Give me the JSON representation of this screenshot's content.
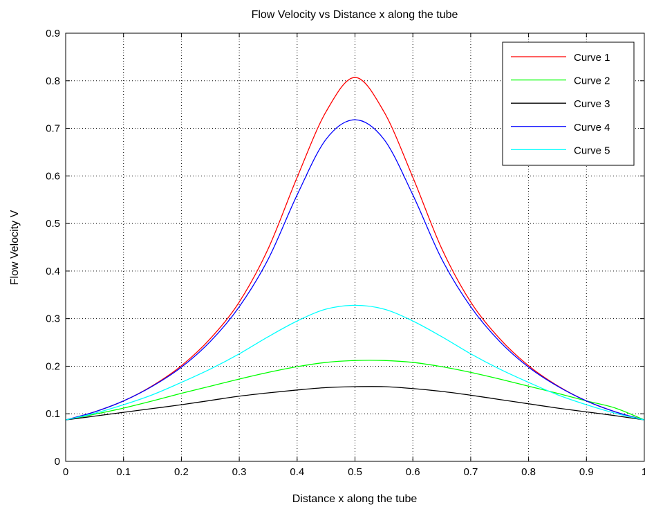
{
  "chart_data": {
    "type": "line",
    "title": "Flow Velocity vs Distance x along the tube",
    "xlabel": "Distance x along the tube",
    "ylabel": "Flow Velocity V",
    "xlim": [
      0,
      1
    ],
    "ylim": [
      0,
      0.9
    ],
    "xticks": [
      "0",
      "0.1",
      "0.2",
      "0.3",
      "0.4",
      "0.5",
      "0.6",
      "0.7",
      "0.8",
      "0.9",
      "1"
    ],
    "yticks": [
      "0",
      "0.1",
      "0.2",
      "0.3",
      "0.4",
      "0.5",
      "0.6",
      "0.7",
      "0.8",
      "0.9"
    ],
    "grid": true,
    "legend_position": "top-right",
    "x": [
      0,
      0.05,
      0.1,
      0.15,
      0.2,
      0.25,
      0.3,
      0.35,
      0.4,
      0.45,
      0.5,
      0.55,
      0.6,
      0.65,
      0.7,
      0.75,
      0.8,
      0.85,
      0.9,
      0.95,
      1.0
    ],
    "series": [
      {
        "name": "Curve 1",
        "color": "#ff0000",
        "values": [
          0.087,
          0.104,
          0.127,
          0.159,
          0.201,
          0.258,
          0.335,
          0.447,
          0.597,
          0.735,
          0.807,
          0.735,
          0.597,
          0.447,
          0.335,
          0.258,
          0.201,
          0.159,
          0.127,
          0.104,
          0.087
        ]
      },
      {
        "name": "Curve 2",
        "color": "#00ff00",
        "values": [
          0.087,
          0.099,
          0.112,
          0.127,
          0.143,
          0.158,
          0.173,
          0.187,
          0.199,
          0.208,
          0.212,
          0.212,
          0.208,
          0.199,
          0.187,
          0.173,
          0.158,
          0.143,
          0.127,
          0.112,
          0.087
        ]
      },
      {
        "name": "Curve 3",
        "color": "#000000",
        "values": [
          0.087,
          0.095,
          0.103,
          0.111,
          0.119,
          0.128,
          0.137,
          0.144,
          0.15,
          0.155,
          0.157,
          0.157,
          0.153,
          0.147,
          0.139,
          0.13,
          0.121,
          0.112,
          0.104,
          0.096,
          0.087
        ]
      },
      {
        "name": "Curve 4",
        "color": "#0000ff",
        "values": [
          0.087,
          0.104,
          0.127,
          0.158,
          0.198,
          0.252,
          0.325,
          0.425,
          0.56,
          0.677,
          0.718,
          0.677,
          0.56,
          0.425,
          0.325,
          0.252,
          0.198,
          0.158,
          0.127,
          0.104,
          0.087
        ]
      },
      {
        "name": "Curve 5",
        "color": "#00ffff",
        "values": [
          0.087,
          0.101,
          0.119,
          0.14,
          0.166,
          0.194,
          0.226,
          0.262,
          0.295,
          0.32,
          0.328,
          0.32,
          0.295,
          0.262,
          0.226,
          0.194,
          0.166,
          0.14,
          0.119,
          0.101,
          0.087
        ]
      }
    ]
  }
}
